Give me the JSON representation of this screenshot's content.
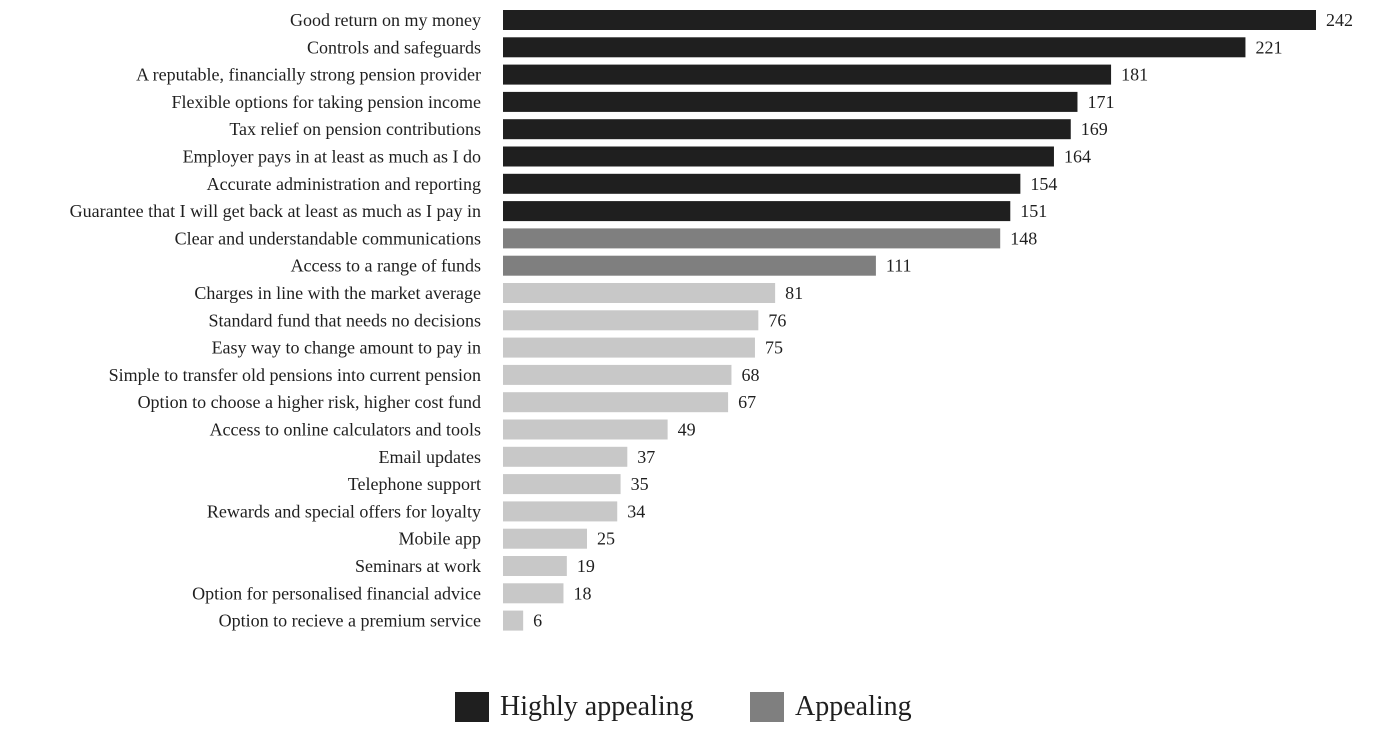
{
  "chart_data": {
    "type": "bar",
    "orientation": "horizontal",
    "categories": [
      "Good return on my money",
      "Controls and safeguards",
      "A reputable, financially strong pension provider",
      "Flexible options for taking pension income",
      "Tax relief on pension contributions",
      "Employer pays in at least as much as I do",
      "Accurate administration and reporting",
      "Guarantee that I will get back at least as much as I pay in",
      "Clear and understandable communications",
      "Access to a range of funds",
      "Charges in line with the market average",
      "Standard fund that needs no decisions",
      "Easy way to change amount to pay in",
      "Simple to transfer old pensions into current pension",
      "Option to choose a higher risk, higher cost fund",
      "Access to online calculators and tools",
      "Email updates",
      "Telephone support",
      "Rewards and special offers for loyalty",
      "Mobile app",
      "Seminars at work",
      "Option for personalised financial advice",
      "Option to recieve a premium service"
    ],
    "values": [
      242,
      221,
      181,
      171,
      169,
      164,
      154,
      151,
      148,
      111,
      81,
      76,
      75,
      68,
      67,
      49,
      37,
      35,
      34,
      25,
      19,
      18,
      6
    ],
    "groups": [
      "highly",
      "highly",
      "highly",
      "highly",
      "highly",
      "highly",
      "highly",
      "highly",
      "appealing",
      "appealing",
      "other",
      "other",
      "other",
      "other",
      "other",
      "other",
      "other",
      "other",
      "other",
      "other",
      "other",
      "other",
      "other"
    ],
    "colors": {
      "highly": "#1f1f1f",
      "appealing": "#7f7f7f",
      "other": "#c8c8c8"
    },
    "legend": [
      {
        "label": "Highly appealing",
        "color": "#1f1f1f"
      },
      {
        "label": "Appealing",
        "color": "#7f7f7f"
      }
    ],
    "xlim": [
      0,
      242
    ],
    "legend_position": "bottom-center",
    "grid": false
  }
}
